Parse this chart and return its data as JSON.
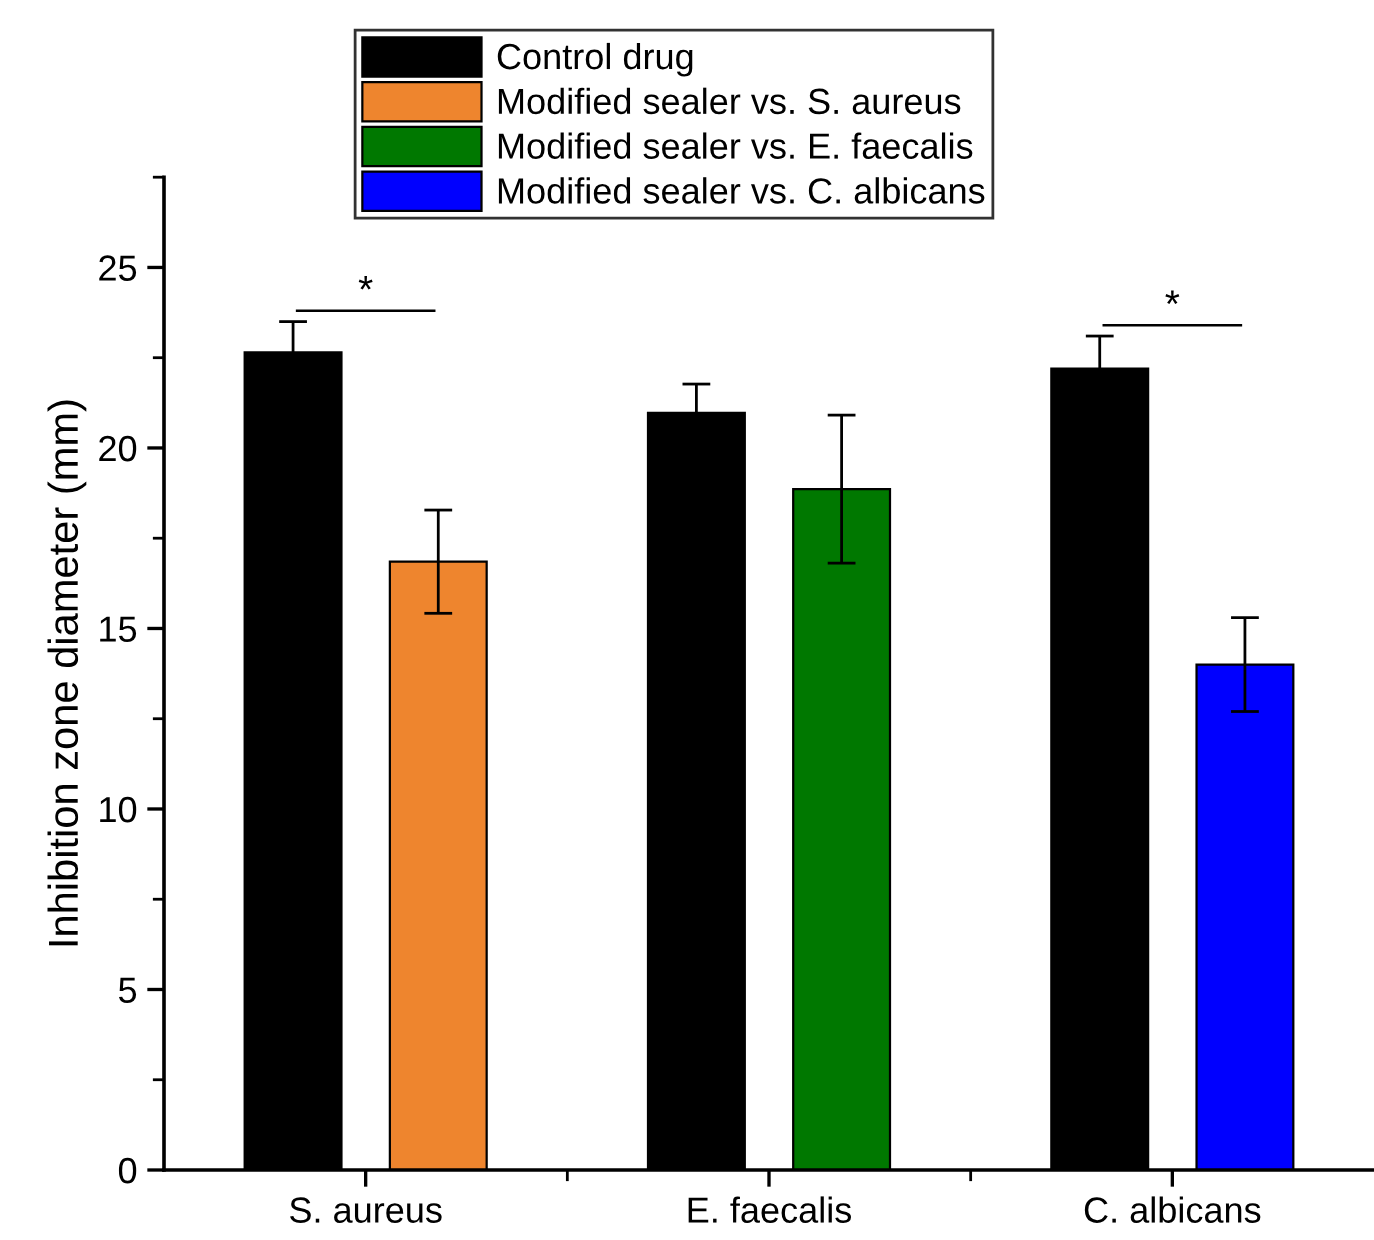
{
  "chart_data": {
    "type": "bar",
    "ylabel": "Inhibition zone diameter (mm)",
    "categories": [
      "S. aureus",
      "E. faecalis",
      "C. albicans"
    ],
    "series": [
      {
        "name": "Control drug",
        "color": "#000000",
        "values": [
          22.65,
          20.97,
          22.2
        ],
        "errors": [
          0.85,
          0.8,
          0.9
        ]
      },
      {
        "name": "Modified sealer vs. S. aureus",
        "color": "#ee852e",
        "values": [
          16.85,
          null,
          null
        ],
        "errors": [
          1.43,
          null,
          null
        ]
      },
      {
        "name": "Modified sealer vs. E. faecalis",
        "color": "#007800",
        "values": [
          null,
          18.86,
          null
        ],
        "errors": [
          null,
          2.05,
          null
        ]
      },
      {
        "name": "Modified sealer vs. C. albicans",
        "color": "#0000ff",
        "values": [
          null,
          null,
          14.0
        ],
        "errors": [
          null,
          null,
          1.3
        ]
      }
    ],
    "ylim": [
      0,
      27.5
    ],
    "yticks": [
      0,
      5,
      10,
      15,
      20,
      25
    ],
    "annotations": [
      "*",
      "*"
    ],
    "legend": "top",
    "grid": false
  }
}
